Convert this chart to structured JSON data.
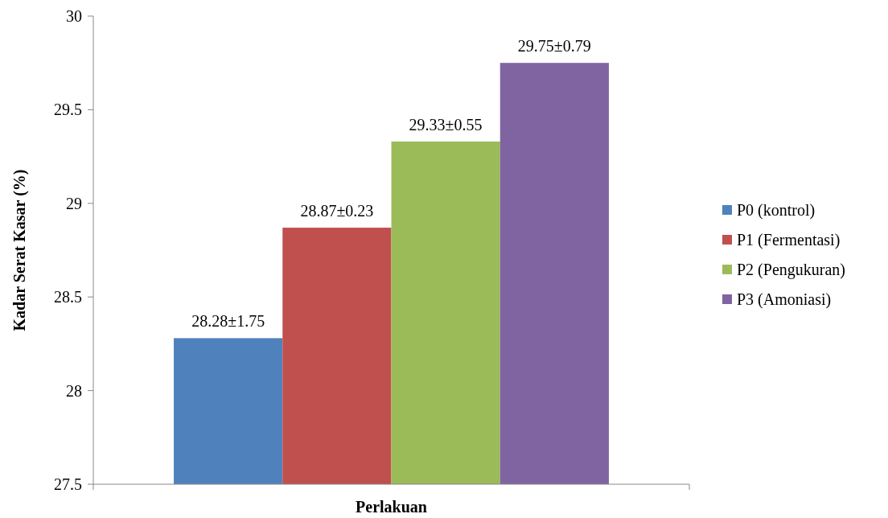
{
  "chart_data": {
    "type": "bar",
    "xlabel": "Perlakuan",
    "ylabel": "Kadar Serat Kasar (%)",
    "categories": [
      null
    ],
    "series": [
      {
        "name": "P0 (kontrol)",
        "color": "#4f81bd",
        "values": [
          28.28
        ],
        "value_labels": [
          "28.28±1.75"
        ]
      },
      {
        "name": "P1 (Fermentasi)",
        "color": "#c0504d",
        "values": [
          28.87
        ],
        "value_labels": [
          "28.87±0.23"
        ]
      },
      {
        "name": "P2 (Pengukuran)",
        "color": "#9bbb59",
        "values": [
          29.33
        ],
        "value_labels": [
          "29.33±0.55"
        ]
      },
      {
        "name": "P3 (Amoniasi)",
        "color": "#8064a2",
        "values": [
          29.75
        ],
        "value_labels": [
          "29.75±0.79"
        ]
      }
    ],
    "ylim": [
      27.5,
      30
    ],
    "yticks": [
      27.5,
      28,
      28.5,
      29,
      29.5,
      30
    ],
    "grid": false,
    "legend": "right"
  }
}
